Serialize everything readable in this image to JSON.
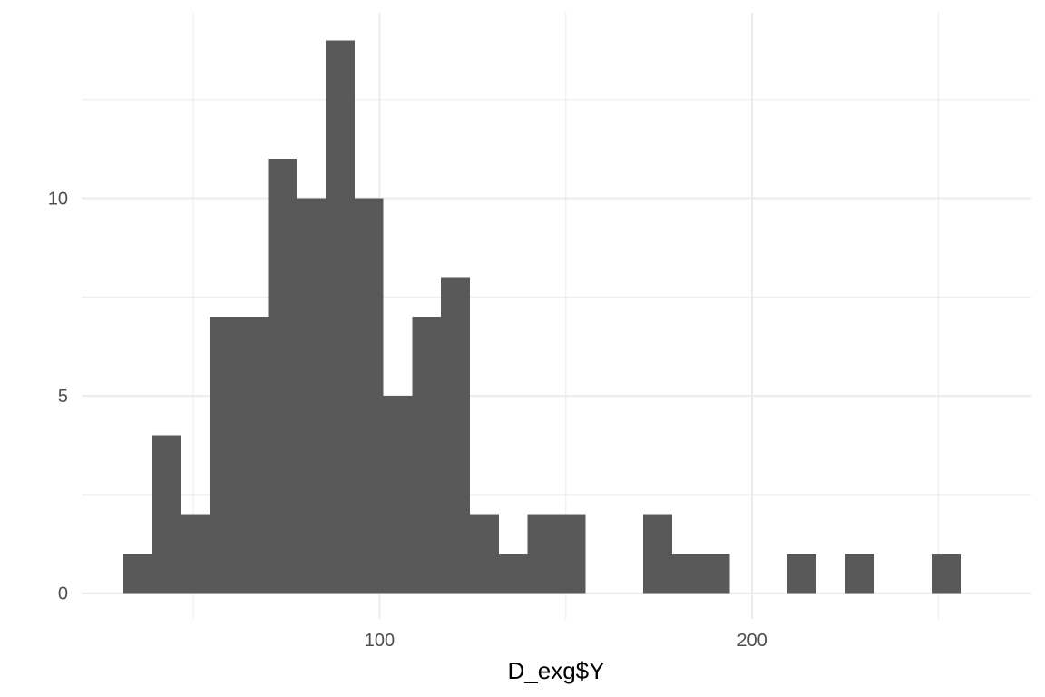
{
  "chart_data": {
    "type": "bar",
    "subtype": "histogram",
    "title": "",
    "xlabel": "D_exg$Y",
    "ylabel": "",
    "bin_width": 7.75,
    "bins": [
      {
        "x_start": 31.25,
        "x_end": 39.0,
        "count": 1
      },
      {
        "x_start": 39.0,
        "x_end": 46.75,
        "count": 4
      },
      {
        "x_start": 46.75,
        "x_end": 54.5,
        "count": 2
      },
      {
        "x_start": 54.5,
        "x_end": 62.25,
        "count": 7
      },
      {
        "x_start": 62.25,
        "x_end": 70.0,
        "count": 7
      },
      {
        "x_start": 70.0,
        "x_end": 77.75,
        "count": 11
      },
      {
        "x_start": 77.75,
        "x_end": 85.5,
        "count": 10
      },
      {
        "x_start": 85.5,
        "x_end": 93.25,
        "count": 14
      },
      {
        "x_start": 93.25,
        "x_end": 101.0,
        "count": 10
      },
      {
        "x_start": 101.0,
        "x_end": 108.75,
        "count": 5
      },
      {
        "x_start": 108.75,
        "x_end": 116.5,
        "count": 7
      },
      {
        "x_start": 116.5,
        "x_end": 124.25,
        "count": 8
      },
      {
        "x_start": 124.25,
        "x_end": 132.0,
        "count": 2
      },
      {
        "x_start": 132.0,
        "x_end": 139.75,
        "count": 1
      },
      {
        "x_start": 139.75,
        "x_end": 147.5,
        "count": 2
      },
      {
        "x_start": 147.5,
        "x_end": 155.25,
        "count": 2
      },
      {
        "x_start": 155.25,
        "x_end": 163.0,
        "count": 0
      },
      {
        "x_start": 163.0,
        "x_end": 170.75,
        "count": 0
      },
      {
        "x_start": 170.75,
        "x_end": 178.5,
        "count": 2
      },
      {
        "x_start": 178.5,
        "x_end": 186.25,
        "count": 1
      },
      {
        "x_start": 186.25,
        "x_end": 194.0,
        "count": 1
      },
      {
        "x_start": 194.0,
        "x_end": 201.75,
        "count": 0
      },
      {
        "x_start": 201.75,
        "x_end": 209.5,
        "count": 0
      },
      {
        "x_start": 209.5,
        "x_end": 217.25,
        "count": 1
      },
      {
        "x_start": 217.25,
        "x_end": 225.0,
        "count": 0
      },
      {
        "x_start": 225.0,
        "x_end": 232.75,
        "count": 1
      },
      {
        "x_start": 232.75,
        "x_end": 240.5,
        "count": 0
      },
      {
        "x_start": 240.5,
        "x_end": 248.25,
        "count": 0
      },
      {
        "x_start": 248.25,
        "x_end": 256.0,
        "count": 1
      }
    ],
    "xlim": [
      20,
      275
    ],
    "ylim": [
      -0.65,
      14.7
    ],
    "x_major_ticks": [
      100,
      200
    ],
    "x_minor_grid": [
      50,
      150,
      250
    ],
    "x_tick_labels": [
      "100",
      "200"
    ],
    "y_major_ticks": [
      0,
      5,
      10
    ],
    "y_minor_grid": [
      2.5,
      7.5,
      12.5
    ],
    "y_tick_labels": [
      "0",
      "5",
      "10"
    ],
    "grid": true,
    "legend": "none",
    "bar_color": "#595959",
    "grid_color": "#ebebeb",
    "background_color": "#ffffff"
  }
}
